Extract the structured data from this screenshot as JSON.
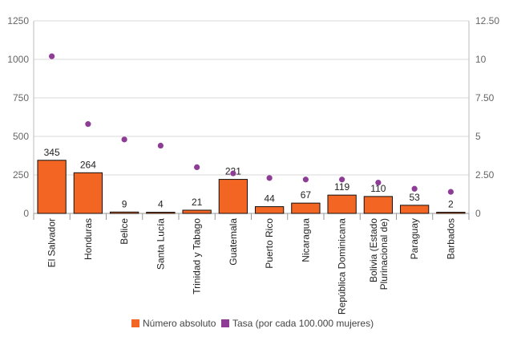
{
  "chart_data": {
    "type": "bar",
    "title": "",
    "xlabel": "",
    "ylabel": "",
    "categories": [
      "El Salvador",
      "Honduras",
      "Belice",
      "Santa Lucía",
      "Trinidad y Tabago",
      "Guatemala",
      "Puerto Rico",
      "Nicaragua",
      "República Dominicana",
      "Bolivia (Estado Plurinacional de)",
      "Paraguay",
      "Barbados"
    ],
    "series": [
      {
        "name": "Número absoluto",
        "type": "bar",
        "axis": "left",
        "color": "#F26522",
        "values": [
          345,
          264,
          9,
          4,
          21,
          221,
          44,
          67,
          119,
          110,
          53,
          2
        ],
        "labels": [
          "345",
          "264",
          "9",
          "4",
          "21",
          "221",
          "44",
          "67",
          "119",
          "110",
          "53",
          "2"
        ]
      },
      {
        "name": "Tasa (por cada 100.000 mujeres)",
        "type": "scatter",
        "axis": "right",
        "color": "#8E3D96",
        "values": [
          10.2,
          5.8,
          4.8,
          4.4,
          3.0,
          2.6,
          2.3,
          2.2,
          2.2,
          2.0,
          1.6,
          1.4
        ]
      }
    ],
    "ylim_left": [
      0,
      1250
    ],
    "ylim_right": [
      0,
      12.5
    ],
    "left_ticks": [
      "0",
      "250",
      "500",
      "750",
      "1000",
      "1250"
    ],
    "right_ticks": [
      "0",
      "2.50",
      "5",
      "7.50",
      "10",
      "12.50"
    ],
    "legend_position": "bottom-center",
    "grid": "horizontal"
  }
}
